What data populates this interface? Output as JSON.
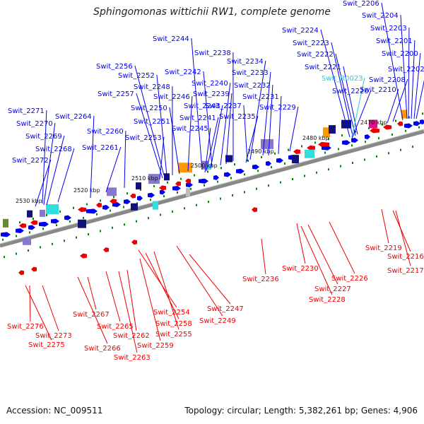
{
  "title": "Sphingomonas wittichii RW1, complete genome",
  "footer": {
    "accession": "Accession: NC_009511",
    "summary": "Topology: circular; Length: 5,382,261 bp; Genes: 4,906"
  },
  "colors": {
    "forward_gene": "#0000ee",
    "reverse_gene": "#ee0000",
    "rna_gene": "#22ccdd",
    "backbone": "#888888",
    "tick": "#008800",
    "orange_feature": "#ff9900",
    "navy_feature": "#111177",
    "lavender_feature": "#8877cc",
    "cyan_feature": "#33dddd",
    "magenta_feature": "#dd1188"
  },
  "scale_labels": [
    "2470 kbp",
    "2480 kbp",
    "2490 kbp",
    "2500 kbp",
    "2510 kbp",
    "2520 kbp",
    "2530 kbp"
  ],
  "top_labels": [
    "Swit_2206",
    "Swit_2204",
    "Swit_2203",
    "Swit_2201",
    "Swit_2200",
    "Swit_2202",
    "Swit_2224",
    "Swit_2223",
    "Swit_2222",
    "Swit_2221",
    "Swit_R0023",
    "Swit_2220",
    "Swit_2208",
    "Swit_2210",
    "Swit_2244",
    "Swit_2238",
    "Swit_2234",
    "Swit_2256",
    "Swit_2252",
    "Swit_2242",
    "Swit_2233",
    "Swit_2240",
    "Swit_2248",
    "Swit_2232",
    "Swit_2257",
    "Swit_2246",
    "Swit_2239",
    "Swit_2231",
    "Swit_2250",
    "Swit_2243",
    "Swit_2237",
    "Swit_2229",
    "Swit_2271",
    "Swit_2264",
    "Swit_2235",
    "Swit_2251",
    "Swit_2241",
    "Swit_2270",
    "Swit_2260",
    "Swit_2245",
    "Swit_2269",
    "Swit_2253",
    "Swit_2268",
    "Swit_2261",
    "Swit_2272"
  ],
  "bottom_labels": [
    "Swit_2219",
    "Swit_2216",
    "Swit_2217",
    "Swit_2230",
    "Swit_2226",
    "Swit_2227",
    "Swit_2228",
    "Swit_2236",
    "Swit_2247",
    "Swit_2267",
    "Swit_2254",
    "Swit_2265",
    "Swit_2258",
    "Swit_2249",
    "Swit_2276",
    "Swit_2262",
    "Swit_2255",
    "Swit_2273",
    "Swit_2275",
    "Swit_2266",
    "Swit_2259",
    "Swit_2263"
  ]
}
